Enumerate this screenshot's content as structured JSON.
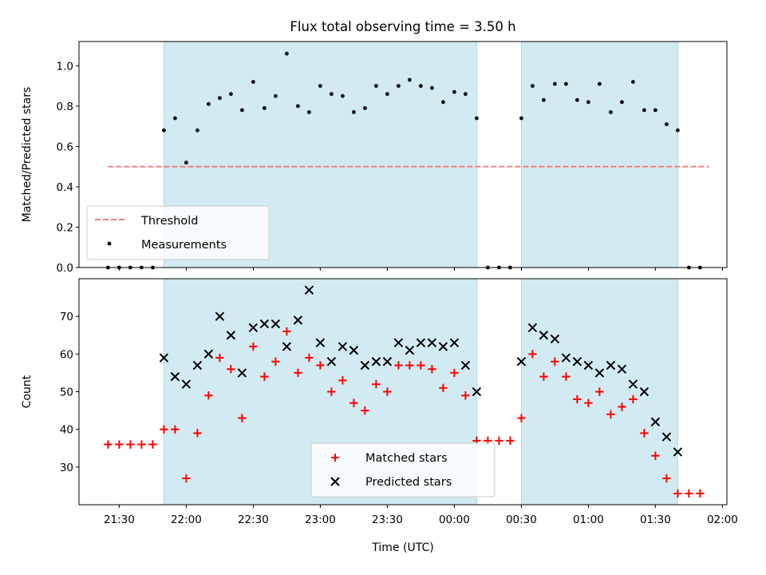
{
  "chart_data": [
    {
      "type": "scatter",
      "title": "Flux total observing time = 3.50 h",
      "ylabel": "Matched/Predicted stars",
      "xlabel": "",
      "xlim": [
        "21:12",
        "02:02"
      ],
      "ylim": [
        0,
        1.12
      ],
      "yticks": [
        "0.0",
        "0.2",
        "0.4",
        "0.6",
        "0.8",
        "1.0"
      ],
      "threshold": {
        "name": "Threshold",
        "value": 0.5,
        "x_range": [
          "21:25",
          "01:54"
        ],
        "color": "#f08080"
      },
      "shaded_intervals": [
        [
          "21:50",
          "00:10"
        ],
        [
          "00:30",
          "01:40"
        ]
      ],
      "shade_color": "#add8e6",
      "legend_position": "lower left",
      "series": [
        {
          "name": "Measurements",
          "color": "#000000",
          "points": [
            [
              "21:25",
              0.0
            ],
            [
              "21:30",
              0.0
            ],
            [
              "21:35",
              0.0
            ],
            [
              "21:40",
              0.0
            ],
            [
              "21:45",
              0.0
            ],
            [
              "21:50",
              0.68
            ],
            [
              "21:55",
              0.74
            ],
            [
              "22:00",
              0.52
            ],
            [
              "22:05",
              0.68
            ],
            [
              "22:10",
              0.81
            ],
            [
              "22:15",
              0.84
            ],
            [
              "22:20",
              0.86
            ],
            [
              "22:25",
              0.78
            ],
            [
              "22:30",
              0.92
            ],
            [
              "22:35",
              0.79
            ],
            [
              "22:40",
              0.85
            ],
            [
              "22:45",
              1.06
            ],
            [
              "22:50",
              0.8
            ],
            [
              "22:55",
              0.77
            ],
            [
              "23:00",
              0.9
            ],
            [
              "23:05",
              0.86
            ],
            [
              "23:10",
              0.85
            ],
            [
              "23:15",
              0.77
            ],
            [
              "23:20",
              0.79
            ],
            [
              "23:25",
              0.9
            ],
            [
              "23:30",
              0.86
            ],
            [
              "23:35",
              0.9
            ],
            [
              "23:40",
              0.93
            ],
            [
              "23:45",
              0.9
            ],
            [
              "23:50",
              0.89
            ],
            [
              "23:55",
              0.82
            ],
            [
              "00:00",
              0.87
            ],
            [
              "00:05",
              0.86
            ],
            [
              "00:10",
              0.74
            ],
            [
              "00:15",
              0.0
            ],
            [
              "00:20",
              0.0
            ],
            [
              "00:25",
              0.0
            ],
            [
              "00:30",
              0.74
            ],
            [
              "00:35",
              0.9
            ],
            [
              "00:40",
              0.83
            ],
            [
              "00:45",
              0.91
            ],
            [
              "00:50",
              0.91
            ],
            [
              "00:55",
              0.83
            ],
            [
              "01:00",
              0.82
            ],
            [
              "01:05",
              0.91
            ],
            [
              "01:10",
              0.77
            ],
            [
              "01:15",
              0.82
            ],
            [
              "01:20",
              0.92
            ],
            [
              "01:25",
              0.78
            ],
            [
              "01:30",
              0.78
            ],
            [
              "01:35",
              0.71
            ],
            [
              "01:40",
              0.68
            ],
            [
              "01:45",
              0.0
            ],
            [
              "01:50",
              0.0
            ]
          ]
        }
      ]
    },
    {
      "type": "scatter",
      "title": "",
      "ylabel": "Count",
      "xlabel": "Time (UTC)",
      "xlim": [
        "21:12",
        "02:02"
      ],
      "ylim": [
        20,
        80
      ],
      "xticks": [
        "21:30",
        "22:00",
        "22:30",
        "23:00",
        "23:30",
        "00:00",
        "00:30",
        "01:00",
        "01:30",
        "02:00"
      ],
      "yticks": [
        "30",
        "40",
        "50",
        "60",
        "70"
      ],
      "shaded_intervals": [
        [
          "21:50",
          "00:10"
        ],
        [
          "00:30",
          "01:40"
        ]
      ],
      "shade_color": "#add8e6",
      "legend_position": "lower center",
      "series": [
        {
          "name": "Matched stars",
          "marker": "+",
          "color": "#ff0000",
          "points": [
            [
              "21:25",
              36
            ],
            [
              "21:30",
              36
            ],
            [
              "21:35",
              36
            ],
            [
              "21:40",
              36
            ],
            [
              "21:45",
              36
            ],
            [
              "21:50",
              40
            ],
            [
              "21:55",
              40
            ],
            [
              "22:00",
              27
            ],
            [
              "22:05",
              39
            ],
            [
              "22:10",
              49
            ],
            [
              "22:15",
              59
            ],
            [
              "22:20",
              56
            ],
            [
              "22:25",
              43
            ],
            [
              "22:30",
              62
            ],
            [
              "22:35",
              54
            ],
            [
              "22:40",
              58
            ],
            [
              "22:45",
              66
            ],
            [
              "22:50",
              55
            ],
            [
              "22:55",
              59
            ],
            [
              "23:00",
              57
            ],
            [
              "23:05",
              50
            ],
            [
              "23:10",
              53
            ],
            [
              "23:15",
              47
            ],
            [
              "23:20",
              45
            ],
            [
              "23:25",
              52
            ],
            [
              "23:30",
              50
            ],
            [
              "23:35",
              57
            ],
            [
              "23:40",
              57
            ],
            [
              "23:45",
              57
            ],
            [
              "23:50",
              56
            ],
            [
              "23:55",
              51
            ],
            [
              "00:00",
              55
            ],
            [
              "00:05",
              49
            ],
            [
              "00:10",
              37
            ],
            [
              "00:15",
              37
            ],
            [
              "00:20",
              37
            ],
            [
              "00:25",
              37
            ],
            [
              "00:30",
              43
            ],
            [
              "00:35",
              60
            ],
            [
              "00:40",
              54
            ],
            [
              "00:45",
              58
            ],
            [
              "00:50",
              54
            ],
            [
              "00:55",
              48
            ],
            [
              "01:00",
              47
            ],
            [
              "01:05",
              50
            ],
            [
              "01:10",
              44
            ],
            [
              "01:15",
              46
            ],
            [
              "01:20",
              48
            ],
            [
              "01:25",
              39
            ],
            [
              "01:30",
              33
            ],
            [
              "01:35",
              27
            ],
            [
              "01:40",
              23
            ],
            [
              "01:45",
              23
            ],
            [
              "01:50",
              23
            ]
          ]
        },
        {
          "name": "Predicted stars",
          "marker": "x",
          "color": "#000000",
          "points": [
            [
              "21:50",
              59
            ],
            [
              "21:55",
              54
            ],
            [
              "22:00",
              52
            ],
            [
              "22:05",
              57
            ],
            [
              "22:10",
              60
            ],
            [
              "22:15",
              70
            ],
            [
              "22:20",
              65
            ],
            [
              "22:25",
              55
            ],
            [
              "22:30",
              67
            ],
            [
              "22:35",
              68
            ],
            [
              "22:40",
              68
            ],
            [
              "22:45",
              62
            ],
            [
              "22:50",
              69
            ],
            [
              "22:55",
              77
            ],
            [
              "23:00",
              63
            ],
            [
              "23:05",
              58
            ],
            [
              "23:10",
              62
            ],
            [
              "23:15",
              61
            ],
            [
              "23:20",
              57
            ],
            [
              "23:25",
              58
            ],
            [
              "23:30",
              58
            ],
            [
              "23:35",
              63
            ],
            [
              "23:40",
              61
            ],
            [
              "23:45",
              63
            ],
            [
              "23:50",
              63
            ],
            [
              "23:55",
              62
            ],
            [
              "00:00",
              63
            ],
            [
              "00:05",
              57
            ],
            [
              "00:10",
              50
            ],
            [
              "00:30",
              58
            ],
            [
              "00:35",
              67
            ],
            [
              "00:40",
              65
            ],
            [
              "00:45",
              64
            ],
            [
              "00:50",
              59
            ],
            [
              "00:55",
              58
            ],
            [
              "01:00",
              57
            ],
            [
              "01:05",
              55
            ],
            [
              "01:10",
              57
            ],
            [
              "01:15",
              56
            ],
            [
              "01:20",
              52
            ],
            [
              "01:25",
              50
            ],
            [
              "01:30",
              42
            ],
            [
              "01:35",
              38
            ],
            [
              "01:40",
              34
            ]
          ]
        }
      ]
    }
  ]
}
